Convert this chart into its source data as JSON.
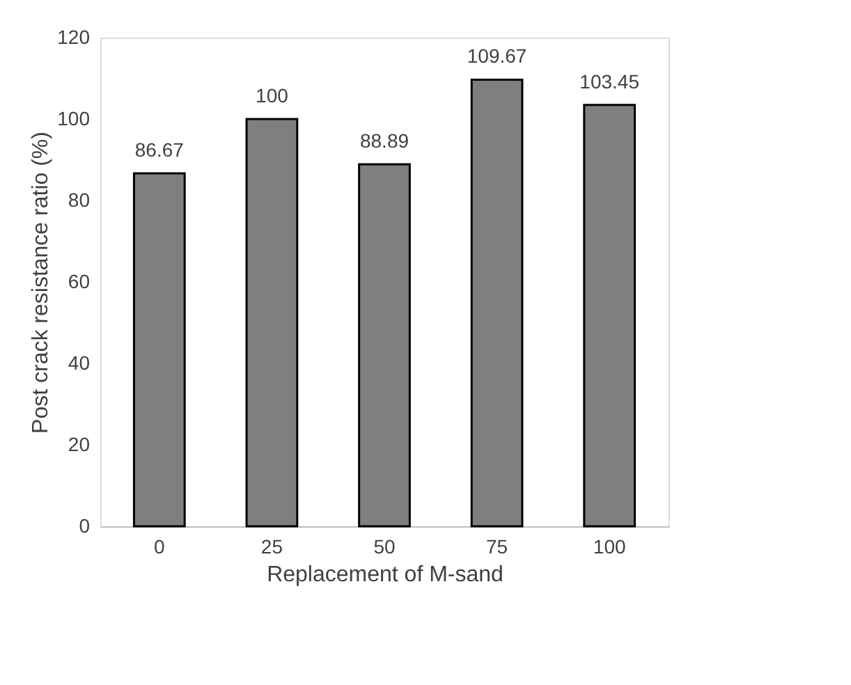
{
  "chart_data": {
    "type": "bar",
    "xlabel": "Replacement of M-sand",
    "ylabel": "Post crack resistance ratio (%)",
    "categories": [
      "0",
      "25",
      "50",
      "75",
      "100"
    ],
    "values": [
      86.67,
      100,
      88.89,
      109.67,
      103.45
    ],
    "color": "#7f7f7f",
    "ylim": [
      0,
      120
    ],
    "yticks": [
      0,
      20,
      40,
      60,
      80,
      100,
      120
    ],
    "grid": false,
    "data_labels": true
  }
}
